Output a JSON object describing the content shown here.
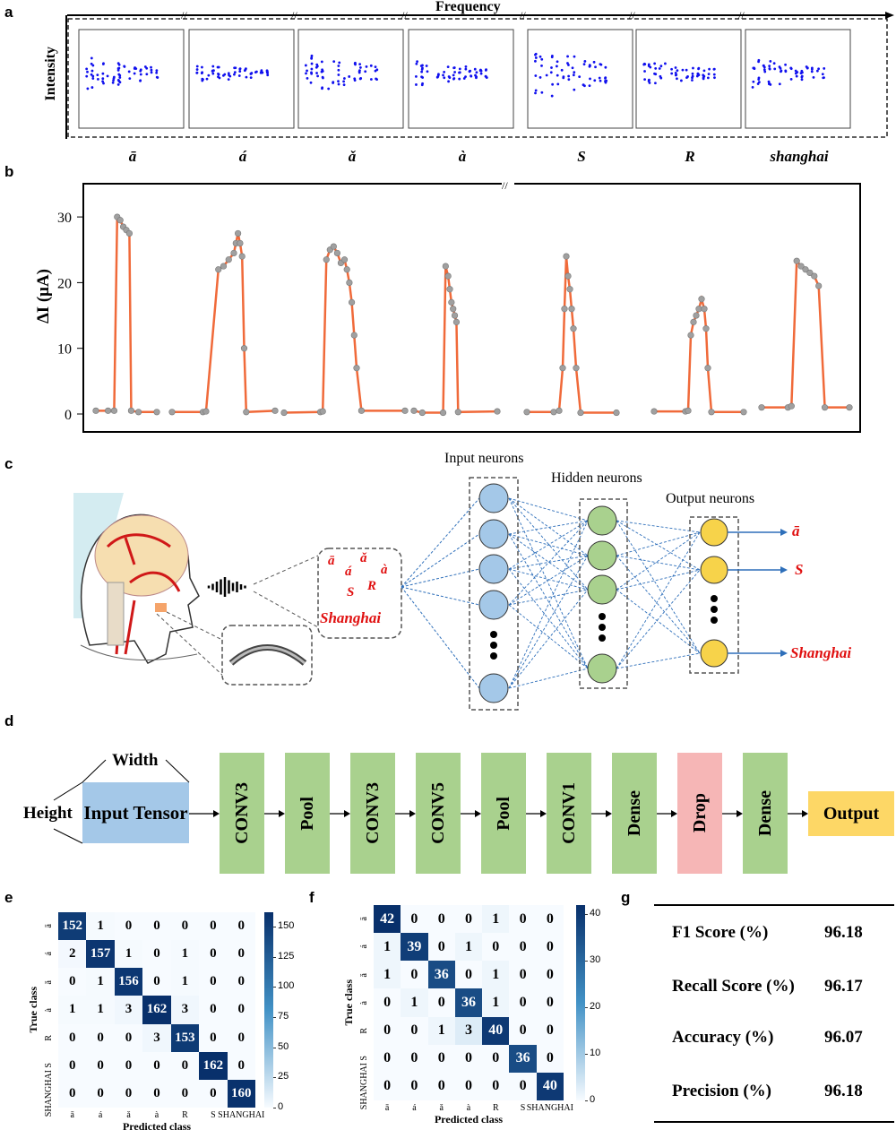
{
  "panels": {
    "a": "a",
    "b": "b",
    "c": "c",
    "d": "d",
    "e": "e",
    "f": "f",
    "g": "g"
  },
  "panel_a": {
    "x_axis_label": "Frequency",
    "y_axis_label": "Intensity",
    "words": [
      "ā",
      "á",
      "ǎ",
      "à",
      "S",
      "R",
      "shanghai"
    ]
  },
  "panel_c": {
    "input_label": "Input neurons",
    "hidden_label": "Hidden neurons",
    "output_label": "Output neurons",
    "words": [
      "ā",
      "á",
      "ǎ",
      "à",
      "S",
      "R",
      "Shanghai"
    ],
    "outputs": [
      "ā",
      "S",
      "Shanghai"
    ]
  },
  "panel_d": {
    "width_label": "Width",
    "height_label": "Height",
    "input": "Input Tensor",
    "layers": [
      "CONV3",
      "Pool",
      "CONV3",
      "CONV5",
      "Pool",
      "CONV1",
      "Dense",
      "Drop",
      "Dense"
    ],
    "output": "Output"
  },
  "panel_g": {
    "rows": [
      {
        "label": "F1 Score (%)",
        "value": "96.18"
      },
      {
        "label": "Recall Score (%)",
        "value": "96.17"
      },
      {
        "label": "Accuracy (%)",
        "value": "96.07"
      },
      {
        "label": "Precision (%)",
        "value": "96.18"
      }
    ]
  },
  "colors": {
    "scatter": "#1010ee",
    "line": "#f06a3a",
    "marker": "#a0a0a0",
    "input": "#a4c8e8",
    "conv": "#a9d18e",
    "drop": "#f6b6b6",
    "output": "#fdd766",
    "red_text": "#e01010",
    "arrow": "#2e6fba"
  },
  "chart_data": [
    {
      "type": "scatter",
      "panel": "a",
      "xlabel": "Frequency",
      "ylabel": "Intensity",
      "categories": [
        "ā",
        "á",
        "ǎ",
        "à",
        "S",
        "R",
        "shanghai"
      ],
      "grid": false
    },
    {
      "type": "line",
      "panel": "b",
      "ylabel": "∆I (μA)",
      "ylim": [
        0,
        32
      ],
      "yticks": [
        0,
        10,
        20,
        30
      ],
      "categories": [
        "ā",
        "á",
        "ǎ",
        "à",
        "S",
        "R",
        "shanghai"
      ],
      "series": [
        {
          "values": [
            [
              0,
              0.5
            ],
            [
              20,
              0.5
            ],
            [
              30,
              0.5
            ],
            [
              35,
              30
            ],
            [
              40,
              29.5
            ],
            [
              45,
              28.5
            ],
            [
              50,
              28
            ],
            [
              55,
              27.5
            ],
            [
              58,
              0.5
            ],
            [
              70,
              0.3
            ],
            [
              100,
              0.3
            ]
          ]
        },
        {
          "values": [
            [
              0,
              0.3
            ],
            [
              30,
              0.3
            ],
            [
              33,
              0.4
            ],
            [
              45,
              22
            ],
            [
              50,
              22.5
            ],
            [
              55,
              23.5
            ],
            [
              60,
              24.5
            ],
            [
              62,
              26
            ],
            [
              64,
              27.5
            ],
            [
              66,
              26
            ],
            [
              68,
              24
            ],
            [
              70,
              10
            ],
            [
              72,
              0.3
            ],
            [
              100,
              0.5
            ]
          ]
        },
        {
          "values": [
            [
              0,
              0.2
            ],
            [
              30,
              0.3
            ],
            [
              32,
              0.4
            ],
            [
              35,
              23.5
            ],
            [
              38,
              25
            ],
            [
              41,
              25.5
            ],
            [
              44,
              24.5
            ],
            [
              47,
              23
            ],
            [
              50,
              23.5
            ],
            [
              52,
              22
            ],
            [
              54,
              20
            ],
            [
              56,
              17
            ],
            [
              58,
              12
            ],
            [
              60,
              7
            ],
            [
              64,
              0.5
            ],
            [
              100,
              0.5
            ]
          ]
        },
        {
          "values": [
            [
              0,
              0.5
            ],
            [
              10,
              0.2
            ],
            [
              35,
              0.2
            ],
            [
              38,
              22.5
            ],
            [
              41,
              21
            ],
            [
              43,
              19
            ],
            [
              45,
              17
            ],
            [
              47,
              16
            ],
            [
              49,
              15
            ],
            [
              51,
              14
            ],
            [
              53,
              0.3
            ],
            [
              100,
              0.4
            ]
          ]
        },
        {
          "values": [
            [
              0,
              0.3
            ],
            [
              30,
              0.3
            ],
            [
              36,
              0.5
            ],
            [
              40,
              7
            ],
            [
              42,
              16
            ],
            [
              44,
              24
            ],
            [
              46,
              21
            ],
            [
              48,
              19
            ],
            [
              50,
              16
            ],
            [
              52,
              13
            ],
            [
              55,
              7
            ],
            [
              60,
              0.2
            ],
            [
              100,
              0.2
            ]
          ]
        },
        {
          "values": [
            [
              0,
              0.4
            ],
            [
              35,
              0.4
            ],
            [
              38,
              0.5
            ],
            [
              41,
              12
            ],
            [
              44,
              14
            ],
            [
              47,
              15
            ],
            [
              50,
              16
            ],
            [
              53,
              17.5
            ],
            [
              56,
              16
            ],
            [
              58,
              13
            ],
            [
              60,
              7
            ],
            [
              64,
              0.3
            ],
            [
              100,
              0.3
            ]
          ]
        },
        {
          "values": [
            [
              0,
              1
            ],
            [
              30,
              1
            ],
            [
              34,
              1.2
            ],
            [
              40,
              23.3
            ],
            [
              45,
              22.5
            ],
            [
              50,
              22
            ],
            [
              55,
              21.5
            ],
            [
              60,
              21
            ],
            [
              65,
              19.5
            ],
            [
              72,
              1
            ],
            [
              100,
              1
            ]
          ]
        }
      ]
    },
    {
      "type": "heatmap",
      "panel": "e",
      "xlabel": "Predicted class",
      "ylabel": "True class",
      "labels": [
        "ā",
        "á",
        "ǎ",
        "à",
        "R",
        "S",
        "SHANGHAI"
      ],
      "colorbar_ticks": [
        0,
        25,
        50,
        75,
        100,
        125,
        150
      ],
      "vmax": 162,
      "values": [
        [
          152,
          1,
          0,
          0,
          0,
          0,
          0
        ],
        [
          2,
          157,
          1,
          0,
          1,
          0,
          0
        ],
        [
          0,
          1,
          156,
          0,
          1,
          0,
          0
        ],
        [
          1,
          1,
          3,
          162,
          3,
          0,
          0
        ],
        [
          0,
          0,
          0,
          3,
          153,
          0,
          0
        ],
        [
          0,
          0,
          0,
          0,
          0,
          162,
          0
        ],
        [
          0,
          0,
          0,
          0,
          0,
          0,
          160
        ]
      ]
    },
    {
      "type": "heatmap",
      "panel": "f",
      "xlabel": "Predicted class",
      "ylabel": "True class",
      "labels": [
        "ā",
        "á",
        "ǎ",
        "à",
        "R",
        "S",
        "SHANGHAI"
      ],
      "colorbar_ticks": [
        0,
        10,
        20,
        30,
        40
      ],
      "vmax": 42,
      "values": [
        [
          42,
          0,
          0,
          0,
          1,
          0,
          0
        ],
        [
          1,
          39,
          0,
          1,
          0,
          0,
          0
        ],
        [
          1,
          0,
          36,
          0,
          1,
          0,
          0
        ],
        [
          0,
          1,
          0,
          36,
          1,
          0,
          0
        ],
        [
          0,
          0,
          1,
          3,
          40,
          0,
          0
        ],
        [
          0,
          0,
          0,
          0,
          0,
          36,
          0
        ],
        [
          0,
          0,
          0,
          0,
          0,
          0,
          40
        ]
      ]
    }
  ]
}
